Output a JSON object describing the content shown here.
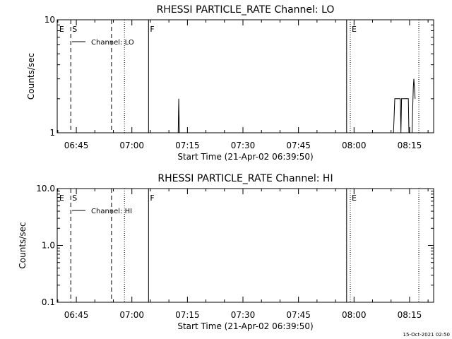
{
  "timestamp": "15-Oct-2021 02:50",
  "chart_data": [
    {
      "type": "line",
      "title": "RHESSI PARTICLE_RATE Channel: LO",
      "xlabel": "Start Time (21-Apr-02 06:39:50)",
      "ylabel": "Counts/sec",
      "yscale": "log",
      "ylim": [
        1,
        10
      ],
      "xlim": [
        "06:39:50",
        "08:21:30"
      ],
      "x_ticks": [
        "06:45",
        "07:00",
        "07:15",
        "07:30",
        "07:45",
        "08:00",
        "08:15"
      ],
      "y_ticks": [
        "1",
        "10"
      ],
      "legend": "Channel: LO",
      "legend_position": "top-left",
      "markers": [
        {
          "label": "E",
          "time": "06:40:00",
          "style": "none"
        },
        {
          "label": "S",
          "time": "06:43:30",
          "style": "dashed"
        },
        {
          "label": "",
          "time": "06:54:30",
          "style": "dashed"
        },
        {
          "label": "",
          "time": "06:58:00",
          "style": "dotted"
        },
        {
          "label": "F",
          "time": "07:04:30",
          "style": "solid"
        },
        {
          "label": "",
          "time": "07:58:00",
          "style": "solid"
        },
        {
          "label": "E",
          "time": "07:59:00",
          "style": "dotted"
        },
        {
          "label": "",
          "time": "08:17:30",
          "style": "dotted"
        }
      ],
      "series": [
        {
          "segments": [
            [
              [
                "07:12:30",
                1
              ],
              [
                "07:12:40",
                2
              ],
              [
                "07:12:50",
                1
              ]
            ],
            [
              [
                "08:10:40",
                1
              ],
              [
                "08:11:00",
                2
              ],
              [
                "08:12:30",
                2
              ],
              [
                "08:12:40",
                1
              ],
              [
                "08:12:50",
                2
              ],
              [
                "08:14:40",
                2
              ],
              [
                "08:14:50",
                1
              ],
              [
                "08:15:40",
                1
              ],
              [
                "08:16:00",
                2.5
              ],
              [
                "08:16:10",
                3
              ],
              [
                "08:16:30",
                2
              ]
            ]
          ]
        }
      ]
    },
    {
      "type": "line",
      "title": "RHESSI PARTICLE_RATE Channel: HI",
      "xlabel": "Start Time (21-Apr-02 06:39:50)",
      "ylabel": "Counts/sec",
      "yscale": "log",
      "ylim": [
        0.1,
        10
      ],
      "xlim": [
        "06:39:50",
        "08:21:30"
      ],
      "x_ticks": [
        "06:45",
        "07:00",
        "07:15",
        "07:30",
        "07:45",
        "08:00",
        "08:15"
      ],
      "y_ticks": [
        "0.1",
        "1.0",
        "10.0"
      ],
      "legend": "Channel: HI",
      "legend_position": "top-left",
      "markers": [
        {
          "label": "E",
          "time": "06:40:00",
          "style": "none"
        },
        {
          "label": "S",
          "time": "06:43:30",
          "style": "dashed"
        },
        {
          "label": "",
          "time": "06:54:30",
          "style": "dashed"
        },
        {
          "label": "",
          "time": "06:58:00",
          "style": "dotted"
        },
        {
          "label": "F",
          "time": "07:04:30",
          "style": "solid"
        },
        {
          "label": "",
          "time": "07:58:00",
          "style": "solid"
        },
        {
          "label": "E",
          "time": "07:59:00",
          "style": "dotted"
        },
        {
          "label": "",
          "time": "08:17:30",
          "style": "dotted"
        }
      ],
      "series": []
    }
  ]
}
